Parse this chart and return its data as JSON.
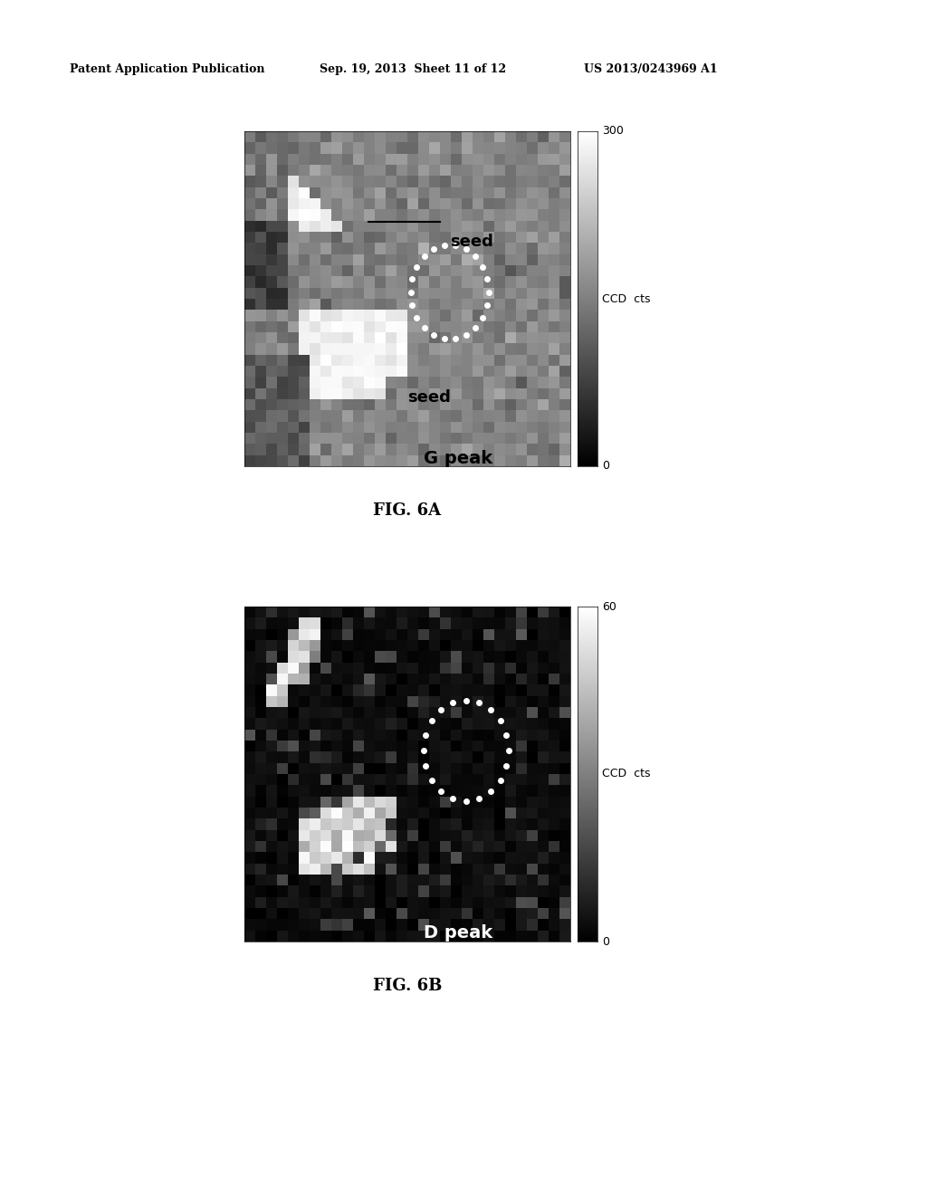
{
  "page_title_left": "Patent Application Publication",
  "page_title_mid": "Sep. 19, 2013  Sheet 11 of 12",
  "page_title_right": "US 2013/0243969 A1",
  "fig6a_label": "FIG. 6A",
  "fig6b_label": "FIG. 6B",
  "fig6a_title": "G peak",
  "fig6a_seed1": "seed",
  "fig6a_seed2": "seed",
  "fig6b_title": "D peak",
  "colorbar_label": "CCD  cts",
  "fig6a_cbar_max": "300",
  "fig6a_cbar_min": "0",
  "fig6b_cbar_max": "60",
  "fig6b_cbar_min": "0",
  "background_color": "#ffffff"
}
